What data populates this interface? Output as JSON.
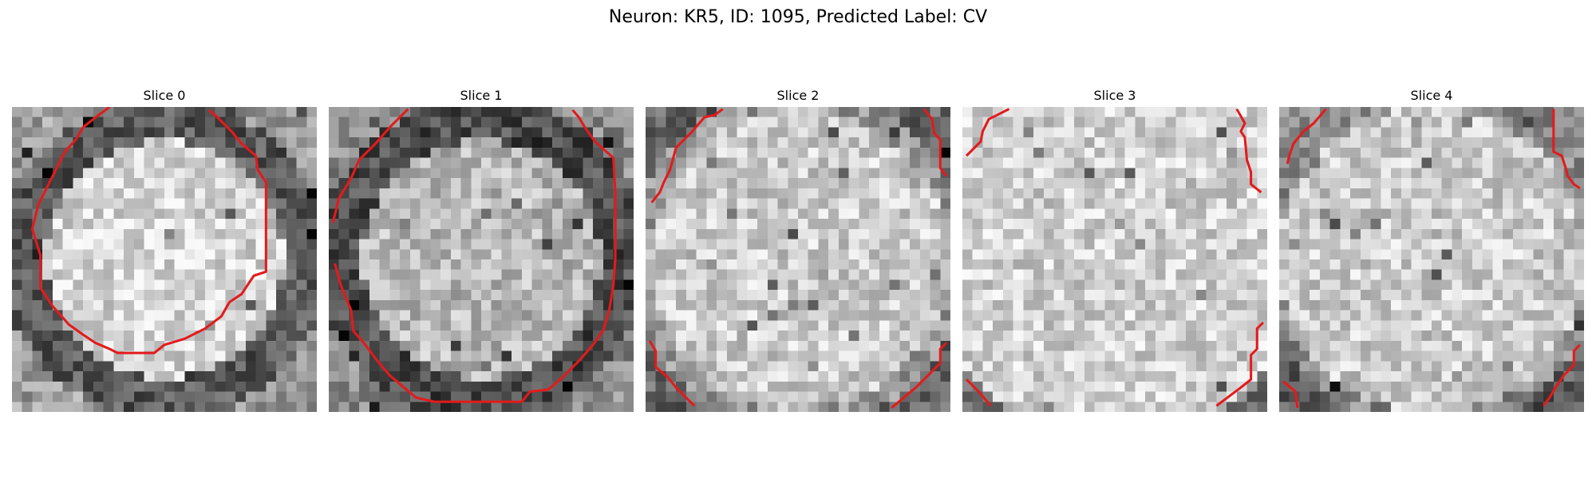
{
  "figure": {
    "title": "Neuron: KR5, ID: 1095, Predicted Label: CV",
    "contour_color": "#e41a1c",
    "colormap": "grayscale",
    "panels": [
      {
        "title": "Slice 0",
        "pattern": "ring-full",
        "base_tone": 0.62,
        "ring_tone": 0.35,
        "interior_tone": 0.84
      },
      {
        "title": "Slice 1",
        "pattern": "ring-full",
        "base_tone": 0.55,
        "ring_tone": 0.3,
        "interior_tone": 0.72
      },
      {
        "title": "Slice 2",
        "pattern": "corners",
        "base_tone": 0.74,
        "ring_tone": 0.4,
        "interior_tone": 0.8
      },
      {
        "title": "Slice 3",
        "pattern": "corners-faint",
        "base_tone": 0.78,
        "ring_tone": 0.45,
        "interior_tone": 0.82
      },
      {
        "title": "Slice 4",
        "pattern": "corners-bottom",
        "base_tone": 0.74,
        "ring_tone": 0.35,
        "interior_tone": 0.8
      }
    ]
  }
}
